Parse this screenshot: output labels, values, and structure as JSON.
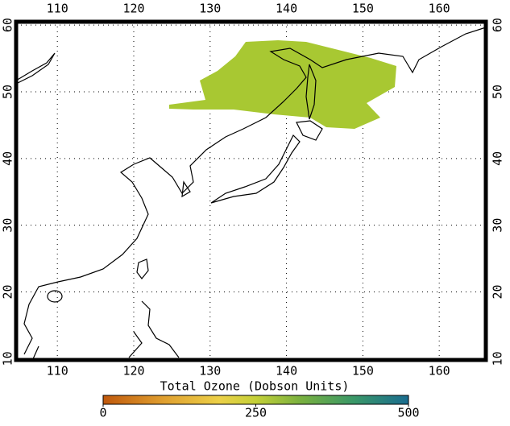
{
  "map": {
    "lon_lim": [
      104.6,
      166.1
    ],
    "lat_lim": [
      9.8,
      60.5
    ],
    "lon_ticks": [
      110,
      120,
      130,
      140,
      150,
      160
    ],
    "lat_ticks": [
      10,
      20,
      30,
      40,
      50,
      60
    ],
    "grid": true,
    "colorbar": {
      "title": "Total Ozone (Dobson Units)",
      "lim": [
        0,
        500
      ],
      "ticks": [
        0,
        250,
        500
      ]
    }
  }
}
